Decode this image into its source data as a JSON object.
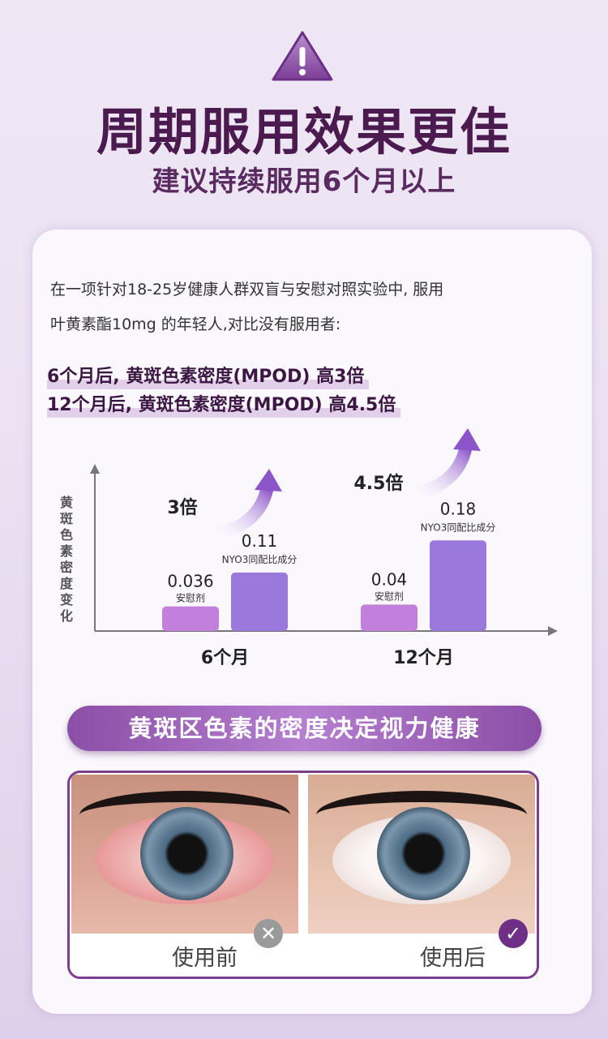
{
  "header": {
    "icon": "warning-icon",
    "title": "周期服用效果更佳",
    "subtitle": "建议持续服用6个月以上"
  },
  "intro": {
    "line1": "在一项针对18-25岁健康人群双盲与安慰对照实验中, 服用",
    "line2": "叶黄素酯10mg  的年轻人,对比没有服用者:"
  },
  "highlights": [
    "6个月后, 黄斑色素密度(MPOD) 高3倍",
    "12个月后, 黄斑色素密度(MPOD) 高4.5倍"
  ],
  "chart_data": {
    "type": "bar",
    "ylabel": "黄斑色素密度变化",
    "categories": [
      "6个月",
      "12个月"
    ],
    "series": [
      {
        "name": "安慰剂",
        "values": [
          0.036,
          0.04
        ],
        "color": "#c27fdb"
      },
      {
        "name": "NYO3同配比成分",
        "values": [
          0.11,
          0.18
        ],
        "color": "#9b79dc"
      }
    ],
    "annotations": [
      "3倍",
      "4.5倍"
    ],
    "value_labels": [
      [
        "0.036",
        "0.04"
      ],
      [
        "0.11",
        "0.18"
      ]
    ]
  },
  "banner": "黄斑区色素的密度决定视力健康",
  "comparison": {
    "before": {
      "label": "使用前",
      "icon": "cross-icon"
    },
    "after": {
      "label": "使用后",
      "icon": "check-icon"
    }
  },
  "colors": {
    "title": "#4b1b50",
    "accent": "#8a4fa6"
  }
}
